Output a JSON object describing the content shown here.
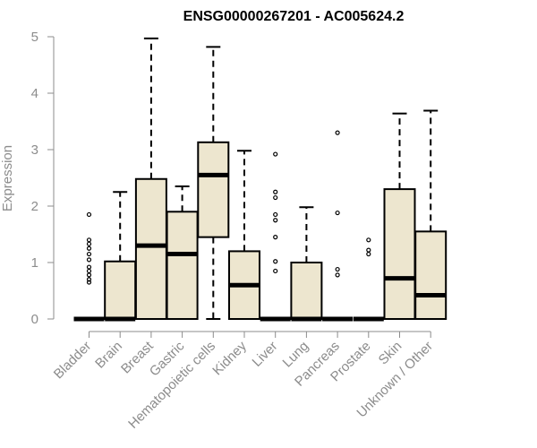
{
  "chart_data": {
    "type": "boxplot",
    "title": "ENSG00000267201 - AC005624.2",
    "xlabel": "",
    "ylabel": "Expression",
    "ylim": [
      0,
      5
    ],
    "yticks": [
      0,
      1,
      2,
      3,
      4,
      5
    ],
    "box_fill": "#ede6cf",
    "axis_color": "#8c8c8c",
    "categories": [
      "Bladder",
      "Brain",
      "Breast",
      "Gastric",
      "Hematopoietic cells",
      "Kidney",
      "Liver",
      "Lung",
      "Pancreas",
      "Prostate",
      "Skin",
      "Unknown / Other"
    ],
    "boxes": [
      {
        "category": "Bladder",
        "q1": 0,
        "median": 0,
        "q3": 0,
        "whisker_low": 0,
        "whisker_high": 0,
        "outliers": [
          0.65,
          0.7,
          0.78,
          0.85,
          0.92,
          1.05,
          1.15,
          1.25,
          1.33,
          1.4,
          1.85
        ]
      },
      {
        "category": "Brain",
        "q1": 0,
        "median": 0,
        "q3": 1.02,
        "whisker_low": 0,
        "whisker_high": 2.25,
        "outliers": []
      },
      {
        "category": "Breast",
        "q1": 0,
        "median": 1.3,
        "q3": 2.48,
        "whisker_low": 0,
        "whisker_high": 4.97,
        "outliers": []
      },
      {
        "category": "Gastric",
        "q1": 0,
        "median": 1.15,
        "q3": 1.9,
        "whisker_low": 0,
        "whisker_high": 2.35,
        "outliers": []
      },
      {
        "category": "Hematopoietic cells",
        "q1": 1.45,
        "median": 2.55,
        "q3": 3.13,
        "whisker_low": 0,
        "whisker_high": 4.82,
        "outliers": []
      },
      {
        "category": "Kidney",
        "q1": 0,
        "median": 0.6,
        "q3": 1.2,
        "whisker_low": 0,
        "whisker_high": 2.98,
        "outliers": []
      },
      {
        "category": "Liver",
        "q1": 0,
        "median": 0,
        "q3": 0,
        "whisker_low": 0,
        "whisker_high": 0,
        "outliers": [
          0.85,
          1.02,
          1.45,
          1.75,
          1.85,
          2.15,
          2.25,
          2.92
        ]
      },
      {
        "category": "Lung",
        "q1": 0,
        "median": 0,
        "q3": 1.0,
        "whisker_low": 0,
        "whisker_high": 1.98,
        "outliers": []
      },
      {
        "category": "Pancreas",
        "q1": 0,
        "median": 0,
        "q3": 0,
        "whisker_low": 0,
        "whisker_high": 0,
        "outliers": [
          0.78,
          0.88,
          1.88,
          3.3
        ]
      },
      {
        "category": "Prostate",
        "q1": 0,
        "median": 0,
        "q3": 0,
        "whisker_low": 0,
        "whisker_high": 0,
        "outliers": [
          1.15,
          1.22,
          1.4
        ]
      },
      {
        "category": "Skin",
        "q1": 0,
        "median": 0.72,
        "q3": 2.3,
        "whisker_low": 0,
        "whisker_high": 3.64,
        "outliers": []
      },
      {
        "category": "Unknown / Other",
        "q1": 0,
        "median": 0.42,
        "q3": 1.55,
        "whisker_low": 0,
        "whisker_high": 3.69,
        "outliers": []
      }
    ]
  }
}
